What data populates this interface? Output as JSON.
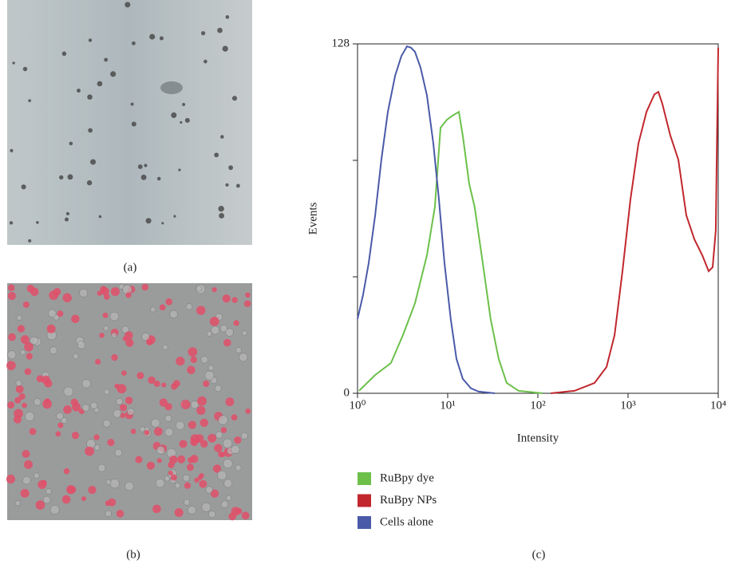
{
  "panel_labels": [
    "(a)",
    "(b)",
    "(c)"
  ],
  "chart_data": {
    "type": "line",
    "xscale": "log",
    "xlabel": "Intensity",
    "ylabel": "Events",
    "xlim": [
      1,
      10000
    ],
    "xticks": [
      {
        "value": 1,
        "label": "10⁰"
      },
      {
        "value": 10,
        "label": "10¹"
      },
      {
        "value": 100,
        "label": "10²"
      },
      {
        "value": 1000,
        "label": "10³"
      },
      {
        "value": 10000,
        "label": "10⁴"
      }
    ],
    "ylim": [
      0,
      128
    ],
    "yticks": [
      0,
      128
    ],
    "y_minor_ticks": [
      42.67,
      85.33
    ],
    "legend": "bottom-left",
    "series": [
      {
        "name": "RuBpy dye",
        "color": "#6cc04a",
        "x": [
          1.04,
          1.57,
          2.35,
          3.19,
          4.34,
          5.89,
          7.21,
          8.33,
          9.8,
          11.3,
          13.3,
          14.7,
          17.3,
          19.9,
          24.5,
          29.9,
          36.8,
          45.1,
          61.2,
          113
        ],
        "values": [
          0.9,
          6.7,
          11.1,
          21.3,
          33.0,
          50.6,
          68.2,
          97.3,
          100.2,
          101.7,
          103.1,
          94.4,
          76.8,
          68.2,
          47.6,
          27.2,
          12.6,
          3.8,
          0.9,
          0
        ]
      },
      {
        "name": "RuBpy NPs",
        "color": "#c1272d",
        "x": [
          139,
          255,
          425,
          577,
          708,
          867,
          1064,
          1303,
          1600,
          1959,
          2169,
          2404,
          2944,
          3611,
          4426,
          5433,
          6653,
          7834,
          8670,
          9397,
          10000
        ],
        "values": [
          0,
          0.9,
          3.8,
          9.6,
          21.3,
          44.7,
          71.0,
          91.5,
          103.1,
          109.5,
          110.4,
          106.0,
          94.4,
          85.6,
          65.2,
          56.4,
          50.6,
          44.7,
          46.2,
          59.6,
          126.6
        ]
      },
      {
        "name": "Cells alone",
        "color": "#4a5aa8",
        "x": [
          1,
          1.15,
          1.33,
          1.57,
          1.84,
          2.17,
          2.61,
          3.07,
          3.54,
          3.92,
          4.34,
          5.0,
          5.89,
          6.93,
          8.0,
          9.22,
          10.8,
          12.5,
          14.7,
          18.1,
          22.1,
          33.3
        ],
        "values": [
          27.2,
          36.0,
          47.7,
          65.2,
          85.6,
          103.1,
          116.3,
          123.6,
          127.1,
          126.6,
          125.1,
          119.3,
          109.1,
          91.5,
          71.0,
          47.6,
          27.2,
          12.6,
          5.3,
          1.8,
          0.6,
          0
        ]
      }
    ]
  }
}
